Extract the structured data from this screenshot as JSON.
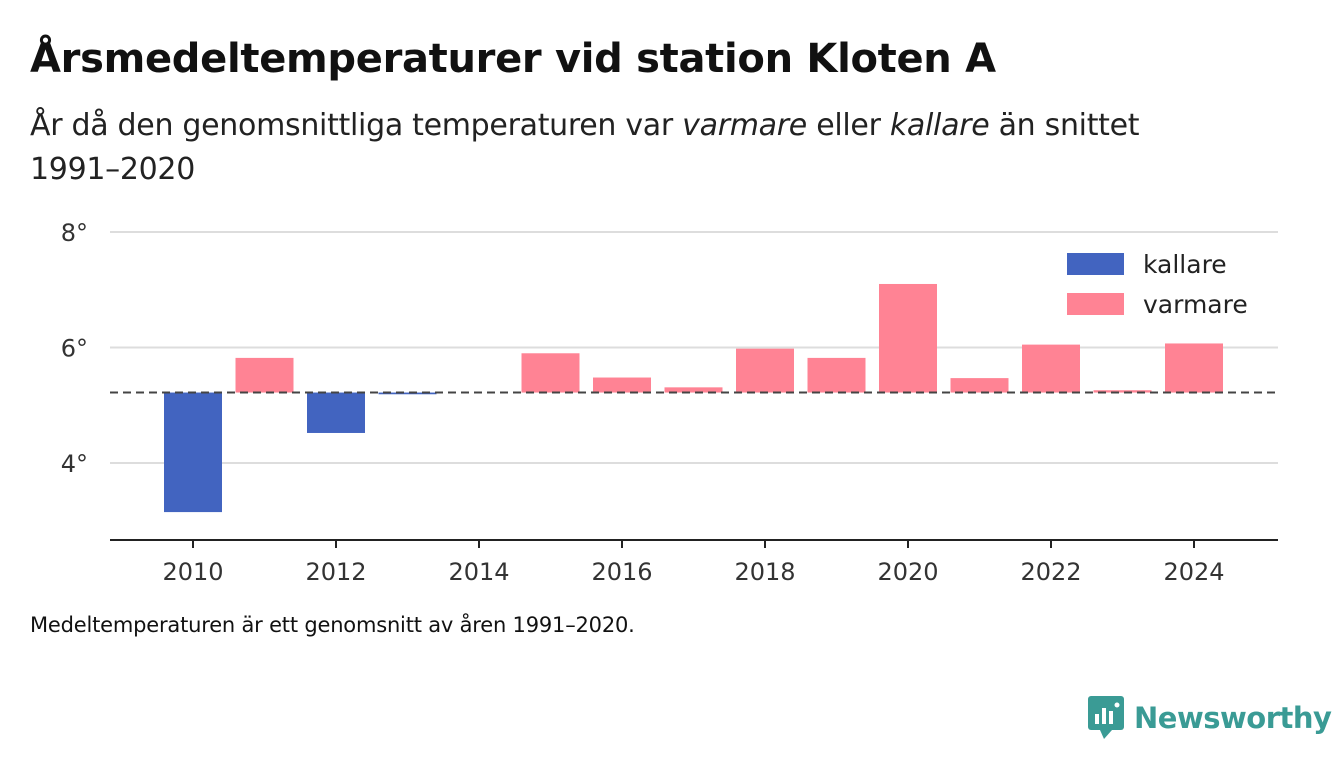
{
  "header": {
    "title": "Årsmedeltemperaturer vid station Kloten A",
    "subtitle_pre": "År då den genomsnittliga temperaturen var ",
    "subtitle_warm": "varmare",
    "subtitle_mid": " eller ",
    "subtitle_cold": "kallare",
    "subtitle_post": " än snittet 1991–2020"
  },
  "footer": {
    "note": "Medeltemperaturen är ett genomsnitt av åren 1991–2020.",
    "brand": "Newsworthy"
  },
  "colors": {
    "kallare": "#4264c0",
    "varmare": "#ff8394",
    "baseline": "#444444",
    "grid": "#dddddd",
    "brand": "#3a9b95"
  },
  "chart_data": {
    "type": "bar",
    "baseline": 5.22,
    "x": [
      2010,
      2011,
      2012,
      2013,
      2014,
      2015,
      2016,
      2017,
      2018,
      2019,
      2020,
      2021,
      2022,
      2023,
      2024
    ],
    "values": [
      3.15,
      5.82,
      4.52,
      5.19,
      5.22,
      5.9,
      5.48,
      5.31,
      5.98,
      5.82,
      7.1,
      5.47,
      6.05,
      5.26,
      6.07
    ],
    "ylim": [
      2.7,
      8
    ],
    "yticks": [
      4,
      6,
      8
    ],
    "ytick_labels": [
      "4°",
      "6°",
      "8°"
    ],
    "xticks": [
      2010,
      2012,
      2014,
      2016,
      2018,
      2020,
      2022,
      2024
    ],
    "xlim": [
      2009,
      2025.2
    ],
    "legend": {
      "position": "top-right",
      "entries": [
        "kallare",
        "varmare"
      ]
    },
    "grid": true
  }
}
